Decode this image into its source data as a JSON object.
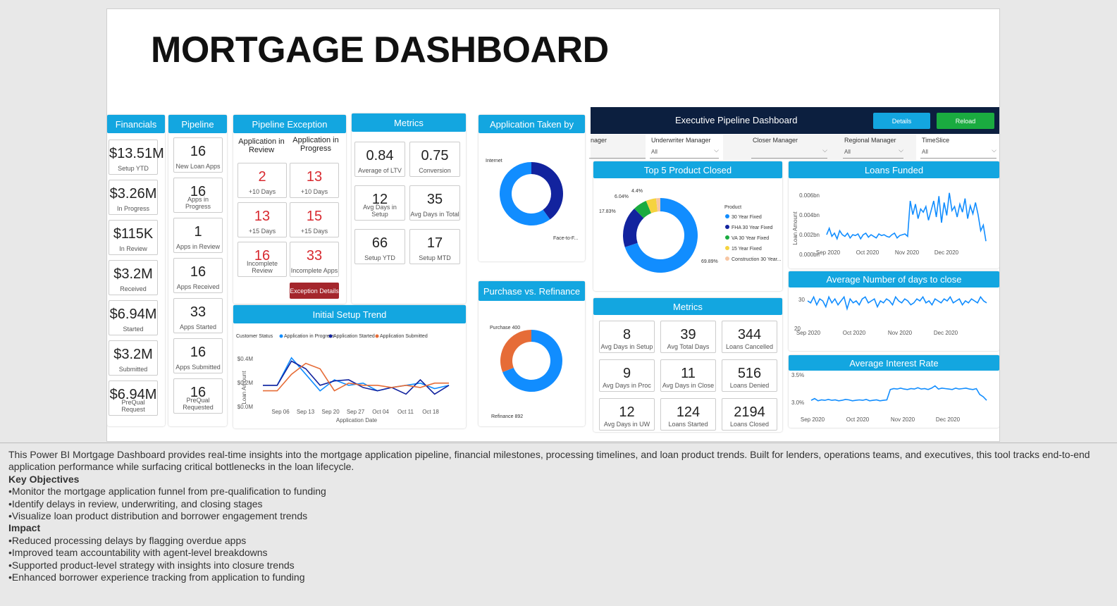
{
  "title": "MORTGAGE DASHBOARD",
  "financials": {
    "header": "Financials",
    "items": [
      {
        "value": "$13.51M",
        "label": "Setup YTD"
      },
      {
        "value": "$3.26M",
        "label": "In Progress"
      },
      {
        "value": "$115K",
        "label": "In Review"
      },
      {
        "value": "$3.2M",
        "label": "Received"
      },
      {
        "value": "$6.94M",
        "label": "Started"
      },
      {
        "value": "$3.2M",
        "label": "Submitted"
      },
      {
        "value": "$6.94M",
        "label": "PreQual Request"
      }
    ]
  },
  "pipeline": {
    "header": "Pipeline",
    "items": [
      {
        "value": "16",
        "label": "New Loan Apps"
      },
      {
        "value": "16",
        "label": "Apps in Progress"
      },
      {
        "value": "1",
        "label": "Apps in Review"
      },
      {
        "value": "16",
        "label": "Apps Received"
      },
      {
        "value": "33",
        "label": "Apps Started"
      },
      {
        "value": "16",
        "label": "Apps Submitted"
      },
      {
        "value": "16",
        "label": "PreQual Requested"
      }
    ]
  },
  "pipeline_exception": {
    "header": "Pipeline Exception",
    "col1": "Application in Review",
    "col2": "Application in Progress",
    "cells": [
      {
        "value": "2",
        "label": "+10 Days"
      },
      {
        "value": "13",
        "label": "+10 Days"
      },
      {
        "value": "13",
        "label": "+15 Days"
      },
      {
        "value": "15",
        "label": "+15 Days"
      },
      {
        "value": "16",
        "label": "Incomplete Review"
      },
      {
        "value": "33",
        "label": "Incomplete Apps"
      }
    ],
    "button": "Exception Details"
  },
  "metrics_left": {
    "header": "Metrics",
    "cells": [
      {
        "value": "0.84",
        "label": "Average of LTV"
      },
      {
        "value": "0.75",
        "label": "Conversion"
      },
      {
        "value": "12",
        "label": "Avg Days in Setup"
      },
      {
        "value": "35",
        "label": "Avg Days in Total"
      },
      {
        "value": "66",
        "label": "Setup YTD"
      },
      {
        "value": "17",
        "label": "Setup MTD"
      }
    ]
  },
  "application_taken": {
    "header": "Application Taken by",
    "labels": [
      "Internet",
      "Face-to-F..."
    ],
    "chart_data": {
      "type": "pie",
      "categories": [
        "Internet",
        "Face-to-Face"
      ],
      "values": [
        40,
        60
      ],
      "colors": [
        "#12239e",
        "#118dff"
      ]
    }
  },
  "purchase_refinance": {
    "header": "Purchase vs. Refinance",
    "labels": [
      "Purchase 400",
      "Refinance 892"
    ],
    "chart_data": {
      "type": "pie",
      "categories": [
        "Purchase",
        "Refinance"
      ],
      "values": [
        400,
        892
      ],
      "colors": [
        "#e66c37",
        "#118dff"
      ]
    }
  },
  "initial_setup": {
    "header": "Initial Setup Trend",
    "legend_title": "Customer Status",
    "legend": [
      "Application in Progress",
      "Application Started",
      "Application Submitted"
    ],
    "ylabel": "Loan Amount",
    "xlabel": "Application Date",
    "yticks": [
      "$0.4M",
      "$0.2M",
      "$0.0M"
    ],
    "xticks": [
      "Sep 06",
      "Sep 13",
      "Sep 20",
      "Sep 27",
      "Oct 04",
      "Oct 11",
      "Oct 18"
    ],
    "chart_data": {
      "type": "line",
      "ylim": [
        0,
        0.5
      ],
      "series": [
        {
          "name": "Application in Progress",
          "color": "#118dff",
          "values": [
            0.2,
            0.2,
            0.45,
            0.3,
            0.15,
            0.25,
            0.2,
            0.22,
            0.15,
            0.18,
            0.2,
            0.22,
            0.17,
            0.2
          ]
        },
        {
          "name": "Application Started",
          "color": "#12239e",
          "values": [
            0.2,
            0.2,
            0.42,
            0.35,
            0.2,
            0.24,
            0.25,
            0.18,
            0.15,
            0.18,
            0.12,
            0.25,
            0.12,
            0.2
          ]
        },
        {
          "name": "Application Submitted",
          "color": "#e66c37",
          "values": [
            0.15,
            0.15,
            0.3,
            0.4,
            0.35,
            0.15,
            0.22,
            0.2,
            0.2,
            0.18,
            0.2,
            0.18,
            0.22,
            0.22
          ]
        }
      ]
    }
  },
  "exec": {
    "title": "Executive Pipeline Dashboard",
    "details_btn": "Details",
    "reload_btn": "Reload",
    "filters": [
      {
        "label": "nager",
        "value": ""
      },
      {
        "label": "Underwriter Manager",
        "value": "All"
      },
      {
        "label": "Closer Manager",
        "value": ""
      },
      {
        "label": "Regional Manager",
        "value": "All"
      },
      {
        "label": "TimeSlice",
        "value": "All"
      }
    ]
  },
  "top5": {
    "header": "Top 5 Product Closed",
    "legend_title": "Product",
    "chart_data": {
      "type": "pie",
      "categories": [
        "30 Year Fixed",
        "FHA 30 Year Fixed",
        "VA 30 Year Fixed",
        "15 Year Fixed",
        "Construction 30 Year..."
      ],
      "values": [
        69.89,
        17.83,
        6.04,
        4.4,
        1.84
      ],
      "colors": [
        "#118dff",
        "#12239e",
        "#1aab40",
        "#f5d33f",
        "#f7c6a3"
      ]
    },
    "pct_labels": [
      "69.89%",
      "17.83%",
      "6.04%",
      "4.4%"
    ]
  },
  "loans_funded": {
    "header": "Loans Funded",
    "yticks": [
      "0.006bn",
      "0.004bn",
      "0.002bn",
      "0.000bn"
    ],
    "xticks": [
      "Sep 2020",
      "Oct 2020",
      "Nov 2020",
      "Dec 2020"
    ],
    "ylabel": "Loan Amount",
    "chart_data": {
      "type": "line",
      "ylim": [
        0,
        0.007
      ],
      "series": [
        {
          "name": "Loans Funded",
          "color": "#118dff",
          "values": [
            0.002,
            0.0028,
            0.0018,
            0.0022,
            0.0015,
            0.0025,
            0.002,
            0.0018,
            0.0022,
            0.0016,
            0.002,
            0.0019,
            0.0021,
            0.0015,
            0.002,
            0.0022,
            0.0017,
            0.002,
            0.0018,
            0.0016,
            0.0021,
            0.0019,
            0.002,
            0.0018,
            0.0017,
            0.002,
            0.0022,
            0.0016,
            0.0019,
            0.002,
            0.0021,
            0.0018,
            0.0062,
            0.0045,
            0.0058,
            0.004,
            0.0052,
            0.0048,
            0.0055,
            0.0038,
            0.005,
            0.0062,
            0.0042,
            0.0068,
            0.0035,
            0.006,
            0.0044,
            0.0072,
            0.005,
            0.0055,
            0.0042,
            0.0058,
            0.0048,
            0.0065,
            0.004,
            0.0056,
            0.0046,
            0.006,
            0.0045,
            0.0025,
            0.0032,
            0.0012
          ]
        }
      ]
    }
  },
  "avg_days_close": {
    "header": "Average Number of days to close",
    "yticks": [
      "30",
      "20"
    ],
    "xticks": [
      "Sep 2020",
      "Oct 2020",
      "Nov 2020",
      "Dec 2020"
    ],
    "chart_data": {
      "type": "line",
      "ylim": [
        20,
        35
      ],
      "series": [
        {
          "name": "Average Number of days to close",
          "color": "#118dff",
          "values": [
            30,
            29,
            32,
            28,
            31,
            30,
            27,
            32,
            29,
            31,
            28,
            30,
            32,
            26,
            31,
            29,
            30,
            28,
            31,
            32,
            29,
            30,
            31,
            27,
            30,
            29,
            31,
            30,
            28,
            32,
            30,
            29,
            31,
            30,
            28,
            29,
            31,
            30,
            32,
            29,
            30,
            28,
            31,
            30,
            29,
            31,
            30,
            32,
            29,
            30,
            31,
            28,
            30,
            29,
            31,
            30,
            29,
            32,
            30,
            29
          ]
        }
      ]
    }
  },
  "avg_interest": {
    "header": "Average Interest Rate",
    "yticks": [
      "3.5%",
      "3.0%"
    ],
    "xticks": [
      "Sep 2020",
      "Oct 2020",
      "Nov 2020",
      "Dec 2020"
    ],
    "chart_data": {
      "type": "line",
      "ylim": [
        2.85,
        3.6
      ],
      "series": [
        {
          "name": "Average Interest Rate",
          "color": "#118dff",
          "values": [
            3.02,
            3.06,
            3.01,
            3.03,
            3.02,
            3.04,
            3.02,
            3.03,
            3.01,
            3.02,
            3.04,
            3.03,
            3.01,
            3.02,
            3.03,
            3.02,
            3.04,
            3.01,
            3.02,
            3.03,
            3.01,
            3.02,
            3.03,
            3.26,
            3.28,
            3.27,
            3.29,
            3.27,
            3.26,
            3.28,
            3.27,
            3.3,
            3.27,
            3.28,
            3.26,
            3.29,
            3.34,
            3.27,
            3.29,
            3.28,
            3.27,
            3.26,
            3.29,
            3.27,
            3.28,
            3.29,
            3.27,
            3.26,
            3.28,
            3.15,
            3.1,
            3.02
          ]
        }
      ]
    }
  },
  "metrics_right": {
    "header": "Metrics",
    "cells": [
      {
        "value": "8",
        "label": "Avg Days in Setup"
      },
      {
        "value": "39",
        "label": "Avg Total Days"
      },
      {
        "value": "344",
        "label": "Loans Cancelled"
      },
      {
        "value": "9",
        "label": "Avg Days in Proc"
      },
      {
        "value": "11",
        "label": "Avg Days in Close"
      },
      {
        "value": "516",
        "label": "Loans Denied"
      },
      {
        "value": "12",
        "label": "Avg Days in UW"
      },
      {
        "value": "124",
        "label": "Loans Started"
      },
      {
        "value": "2194",
        "label": "Loans Closed"
      }
    ]
  },
  "description": {
    "intro": "This Power BI Mortgage Dashboard provides real-time insights into the mortgage application pipeline, financial milestones, processing timelines, and loan product trends. Built for lenders, operations teams, and executives, this tool tracks end-to-end application performance while surfacing critical bottlenecks in the loan lifecycle.",
    "h1": "Key Objectives",
    "objectives": [
      "•Monitor the mortgage application funnel from pre-qualification to funding",
      "•Identify delays in review, underwriting, and closing stages",
      "•Visualize loan product distribution and borrower engagement trends"
    ],
    "h2": "Impact",
    "impacts": [
      "•Reduced processing delays by flagging overdue apps",
      "•Improved team accountability with agent-level breakdowns",
      "•Supported product-level strategy with insights into closure trends",
      "•Enhanced borrower experience tracking from application to funding"
    ]
  }
}
